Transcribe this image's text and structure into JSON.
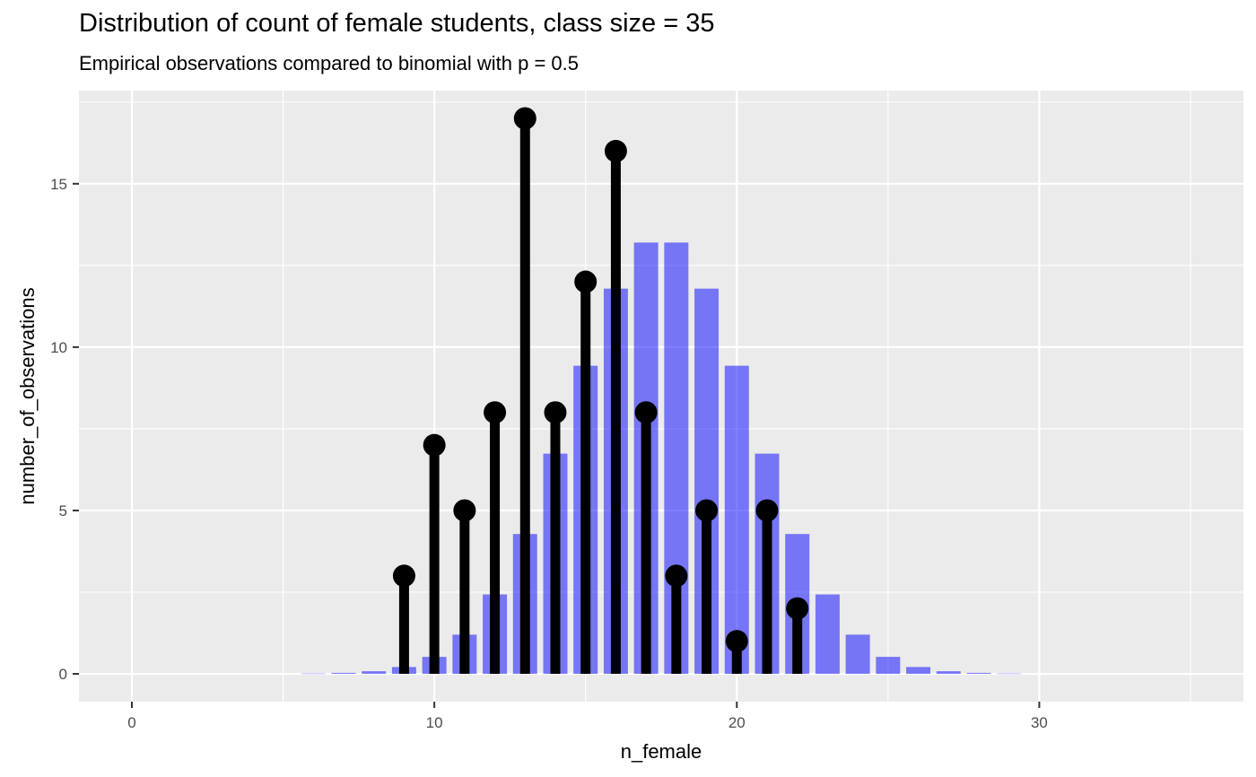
{
  "chart_data": {
    "type": "bar",
    "title": "Distribution of count of female students, class size = 35",
    "subtitle": "Empirical observations compared to binomial with p = 0.5",
    "xlabel": "n_female",
    "ylabel": "number_of_observations",
    "xlim": [
      -1.75,
      36.75
    ],
    "ylim": [
      -0.85,
      17.85
    ],
    "x_ticks": [
      0,
      10,
      20,
      30
    ],
    "y_ticks": [
      0,
      5,
      10,
      15
    ],
    "x_minor": [
      5,
      15,
      25,
      35
    ],
    "y_minor": [
      2.5,
      7.5,
      12.5,
      17.5
    ],
    "grid": true,
    "colors": {
      "panel": "#ebebeb",
      "grid": "#ffffff",
      "bars": "#0000ff",
      "lollipop": "#000000"
    },
    "series": [
      {
        "type": "bar",
        "x": [
          6,
          7,
          8,
          9,
          10,
          11,
          12,
          13,
          14,
          15,
          16,
          17,
          18,
          19,
          20,
          21,
          22,
          23,
          24,
          25,
          26,
          27,
          28,
          29
        ],
        "values": [
          0.01,
          0.03,
          0.08,
          0.21,
          0.52,
          1.2,
          2.43,
          4.28,
          6.74,
          9.43,
          11.79,
          13.2,
          13.2,
          11.79,
          9.43,
          6.74,
          4.28,
          2.43,
          1.2,
          0.52,
          0.21,
          0.08,
          0.03,
          0.01
        ]
      },
      {
        "type": "lollipop",
        "x": [
          9,
          10,
          11,
          12,
          13,
          14,
          15,
          16,
          17,
          18,
          19,
          20,
          21,
          22
        ],
        "values": [
          3,
          7,
          5,
          8,
          17,
          8,
          12,
          16,
          8,
          3,
          5,
          1,
          5,
          2
        ]
      }
    ]
  }
}
